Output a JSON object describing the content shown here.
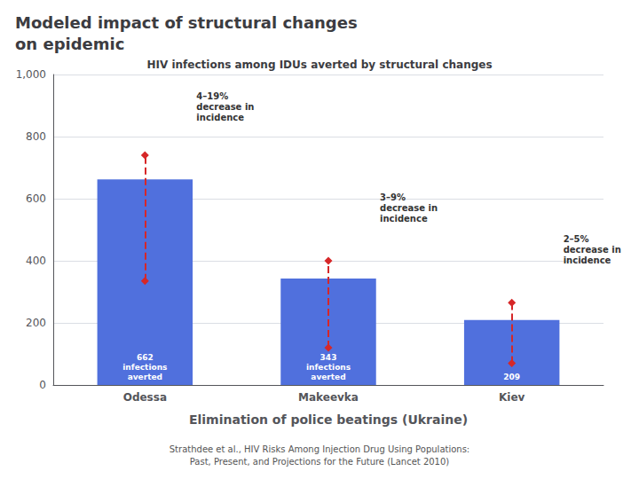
{
  "chart_data": {
    "type": "bar",
    "title": "Modeled impact of structural changes\non epidemic",
    "subtitle": "HIV infections among IDUs averted by structural changes",
    "xlabel": "Elimination of police beatings (Ukraine)",
    "caption": "Strathdee et al., HIV Risks Among Injection Drug Using Populations:\nPast, Present, and Projections for the Future (Lancet 2010)",
    "categories": [
      "Odessa",
      "Makeevka",
      "Kiev"
    ],
    "values": [
      662,
      343,
      209
    ],
    "data_labels": true,
    "value_labels": [
      "662\ninfections\naverted",
      "343\ninfections\naverted",
      "209"
    ],
    "ylim": [
      0,
      1000
    ],
    "yticks": [
      0,
      200,
      400,
      600,
      800,
      1000
    ],
    "grid": true,
    "annotations": [
      {
        "category": "Odessa",
        "text": "4–19%\ndecrease in\nincidence",
        "y": 895,
        "line": [
          335,
          740
        ]
      },
      {
        "category": "Makeevka",
        "text": "3–9%\ndecrease in\nincidence",
        "y": 570,
        "line": [
          120,
          400
        ]
      },
      {
        "category": "Kiev",
        "text": "2–5%\ndecrease in\nincidence",
        "y": 435,
        "line": [
          70,
          265
        ]
      }
    ]
  }
}
